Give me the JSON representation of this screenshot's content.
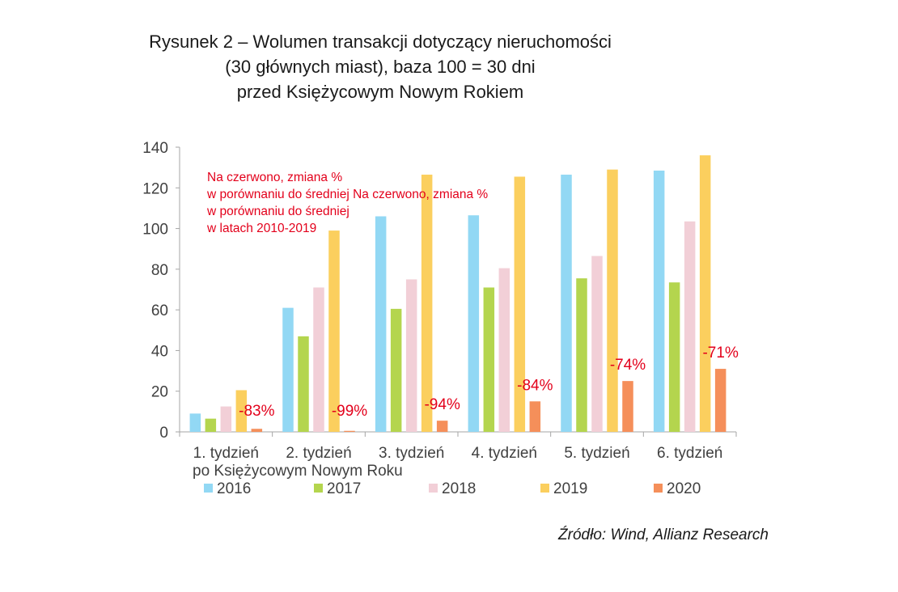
{
  "title": {
    "line1": "Rysunek 2 – Wolumen transakcji dotyczący nieruchomości",
    "line2": "(30 głównych miast), baza 100 = 30 dni",
    "line3": "przed Księżycowym Nowym Rokiem"
  },
  "source": "Źródło: Wind, Allianz Research",
  "chart_data": {
    "type": "bar",
    "categories": [
      "1. tydzień",
      "2. tydzień",
      "3. tydzień",
      "4. tydzień",
      "5. tydzień",
      "6. tydzień"
    ],
    "category_sublabel": "po Księżycowym Nowym Roku",
    "ylim": [
      0,
      140
    ],
    "yticks": [
      0,
      20,
      40,
      60,
      80,
      100,
      120,
      140
    ],
    "series": [
      {
        "name": "2016",
        "color": "#92d8f4",
        "values": [
          9,
          61,
          106,
          106.5,
          126.5,
          128.5
        ]
      },
      {
        "name": "2017",
        "color": "#b4d54e",
        "values": [
          6.5,
          47,
          60.5,
          71,
          75.5,
          73.5
        ]
      },
      {
        "name": "2018",
        "color": "#f2cfd7",
        "values": [
          12.5,
          71,
          75,
          80.5,
          86.5,
          103.5
        ]
      },
      {
        "name": "2019",
        "color": "#fbcf5e",
        "values": [
          20.5,
          99,
          126.5,
          125.5,
          129,
          136
        ]
      },
      {
        "name": "2020",
        "color": "#f58f5a",
        "values": [
          1.5,
          0.5,
          5.5,
          15,
          25,
          31
        ]
      }
    ],
    "data_labels": [
      "-83%",
      "-99%",
      "-94%",
      "-84%",
      "-74%",
      "-71%"
    ],
    "data_label_color": "#e3001b",
    "annotation": {
      "lines": [
        "Na czerwono, zmiana %",
        "w porównaniu do średniej Na czerwono, zmiana %",
        "w porównaniu do średniej",
        "w latach 2010-2019"
      ],
      "color": "#e3001b"
    },
    "legend_position": "bottom",
    "grid": false
  }
}
